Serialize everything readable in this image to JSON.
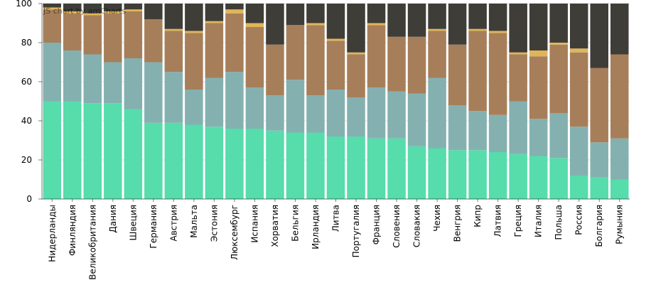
{
  "credit": "JS chart by amCharts",
  "chart_data": {
    "type": "bar",
    "stacked": true,
    "categories": [
      "Нидерланды",
      "Финляндия",
      "Великобритания",
      "Дания",
      "Швеция",
      "Германия",
      "Австрия",
      "Мальта",
      "Эстония",
      "Люксембург",
      "Испания",
      "Хорватия",
      "Бельгия",
      "Ирландия",
      "Литва",
      "Португалия",
      "Франция",
      "Словения",
      "Словакия",
      "Чехия",
      "Венгрия",
      "Кипр",
      "Латвия",
      "Греция",
      "Италия",
      "Польша",
      "Россия",
      "Болгария",
      "Румыния"
    ],
    "ylim": [
      0,
      100
    ],
    "yticks": [
      0,
      20,
      40,
      60,
      80,
      100
    ],
    "series": [
      {
        "color": "#57dcac",
        "values": [
          50,
          50,
          49,
          49,
          46,
          39,
          39,
          38,
          37,
          36,
          36,
          35,
          34,
          34,
          32,
          32,
          31,
          31,
          27,
          26,
          25,
          25,
          24,
          23,
          22,
          21,
          12,
          11,
          10
        ]
      },
      {
        "color": "#85b0b0",
        "values": [
          30,
          26,
          25,
          21,
          26,
          31,
          26,
          18,
          25,
          29,
          21,
          18,
          27,
          19,
          24,
          20,
          26,
          24,
          27,
          36,
          23,
          20,
          19,
          27,
          19,
          23,
          25,
          18,
          21
        ]
      },
      {
        "color": "#a67f5a",
        "values": [
          17,
          19,
          20,
          25,
          24,
          22,
          21,
          29,
          28,
          30,
          31,
          26,
          28,
          36,
          25,
          22,
          32,
          28,
          29,
          24,
          31,
          41,
          42,
          24,
          32,
          35,
          38,
          38,
          43
        ]
      },
      {
        "color": "#e0b558",
        "values": [
          1,
          1,
          1,
          1,
          1,
          0,
          1,
          1,
          1,
          2,
          2,
          0,
          0,
          1,
          1,
          1,
          1,
          0,
          0,
          1,
          0,
          1,
          1,
          1,
          3,
          1,
          2,
          0,
          0
        ]
      },
      {
        "color": "#3f3d38",
        "values": [
          2,
          4,
          5,
          4,
          3,
          8,
          13,
          14,
          9,
          3,
          10,
          21,
          11,
          10,
          18,
          25,
          10,
          17,
          17,
          13,
          21,
          13,
          14,
          25,
          24,
          20,
          23,
          33,
          26
        ]
      }
    ]
  }
}
